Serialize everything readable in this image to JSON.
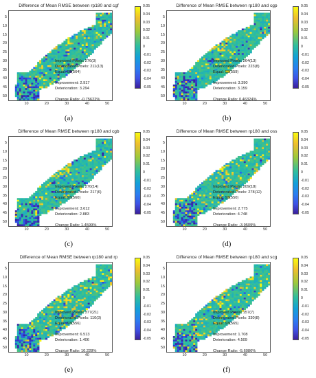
{
  "layout": {
    "columns": 2,
    "rows": 3
  },
  "colorbar": {
    "labels": [
      "0.05",
      "0.04",
      "0.03",
      "0.02",
      "0.01",
      "0",
      "-0.01",
      "-0.02",
      "-0.03",
      "-0.04",
      "-0.05"
    ],
    "colormap": "parula",
    "min": -0.05,
    "max": 0.05
  },
  "chart_data": [
    {
      "type": "heatmap",
      "label": "(a)",
      "title": "Difference of Mean RMSE between rp180 and cgf",
      "xticks": [
        "10",
        "20",
        "30",
        "40",
        "50"
      ],
      "yticks": [
        "5",
        "10",
        "15",
        "20",
        "25",
        "30",
        "35",
        "40",
        "45",
        "50"
      ],
      "xlim": [
        1,
        52
      ],
      "ylim": [
        1,
        52
      ],
      "stats": [
        "Improved Pixels: 276(3)",
        "Deteriorated Pixels: 211(13)",
        "Equal: 93(564)",
        "",
        "Improvement: 2.917",
        "Deterioration: 3.294",
        "",
        "Change Ratio: -0.75622%"
      ]
    },
    {
      "type": "heatmap",
      "label": "(b)",
      "title": "Difference of Mean RMSE between rp180 and cgp",
      "xticks": [
        "10",
        "20",
        "30",
        "40",
        "50"
      ],
      "yticks": [
        "5",
        "10",
        "15",
        "20",
        "25",
        "30",
        "35",
        "40",
        "45",
        "50"
      ],
      "xlim": [
        1,
        52
      ],
      "ylim": [
        1,
        52
      ],
      "stats": [
        "Improved Pixels: 264(13)",
        "Deteriorated Pixels: 223(8)",
        "Equal: 93(559)",
        "",
        "Improvement: 3.390",
        "Deterioration: 3.159",
        "",
        "Change Ratio: 0.46324%"
      ]
    },
    {
      "type": "heatmap",
      "label": "(c)",
      "title": "Difference of Mean RMSE between rp180 and cgb",
      "xticks": [
        "10",
        "20",
        "30",
        "40",
        "50"
      ],
      "yticks": [
        "5",
        "10",
        "15",
        "20",
        "25",
        "30",
        "35",
        "40",
        "45",
        "50"
      ],
      "xlim": [
        1,
        52
      ],
      "ylim": [
        1,
        52
      ],
      "stats": [
        "Improved Pixels: 270(14)",
        "Deteriorated Pixels: 217(6)",
        "Equal: 93(560)",
        "",
        "Improvement: 3.612",
        "Deterioration: 2.883",
        "",
        "Change Ratio: 1.4599%"
      ]
    },
    {
      "type": "heatmap",
      "label": "(d)",
      "title": "Difference of Mean RMSE between rp180 and oss",
      "xticks": [
        "10",
        "20",
        "30",
        "40",
        "50"
      ],
      "yticks": [
        "5",
        "10",
        "15",
        "20",
        "25",
        "30",
        "35",
        "40",
        "45",
        "50"
      ],
      "xlim": [
        1,
        52
      ],
      "ylim": [
        1,
        52
      ],
      "stats": [
        "Improved Pixels: 209(18)",
        "Deteriorated Pixels: 278(12)",
        "Equal: 93(550)",
        "",
        "Improvement: 2.775",
        "Deterioration: 4.748",
        "",
        "Change Ratio: -3.9509%"
      ]
    },
    {
      "type": "heatmap",
      "label": "(e)",
      "title": "Difference of Mean RMSE between rp180 and rp",
      "xticks": [
        "10",
        "20",
        "30",
        "40",
        "50"
      ],
      "yticks": [
        "5",
        "10",
        "15",
        "20",
        "25",
        "30",
        "35",
        "40",
        "45",
        "50"
      ],
      "xlim": [
        1,
        52
      ],
      "ylim": [
        1,
        52
      ],
      "stats": [
        "Improved Pixels: 377(21)",
        "Deteriorated Pixels: 110(3)",
        "Equal: 93(556)",
        "",
        "Improvement: 6.513",
        "Deterioration: 1.406",
        "",
        "Change Ratio: 10.228%"
      ]
    },
    {
      "type": "heatmap",
      "label": "(f)",
      "title": "Difference of Mean RMSE between rp180 and scg",
      "xticks": [
        "10",
        "20",
        "30",
        "40",
        "50"
      ],
      "yticks": [
        "5",
        "10",
        "15",
        "20",
        "25",
        "30",
        "35",
        "40",
        "45",
        "50"
      ],
      "xlim": [
        1,
        52
      ],
      "ylim": [
        1,
        52
      ],
      "stats": [
        "Improved Pixels: 157(7)",
        "Deteriorated Pixels: 330(8)",
        "Equal: 93(565)",
        "",
        "Improvement: 1.708",
        "Deterioration: 4.509",
        "",
        "Change Ratio: -5.6086%"
      ]
    }
  ]
}
